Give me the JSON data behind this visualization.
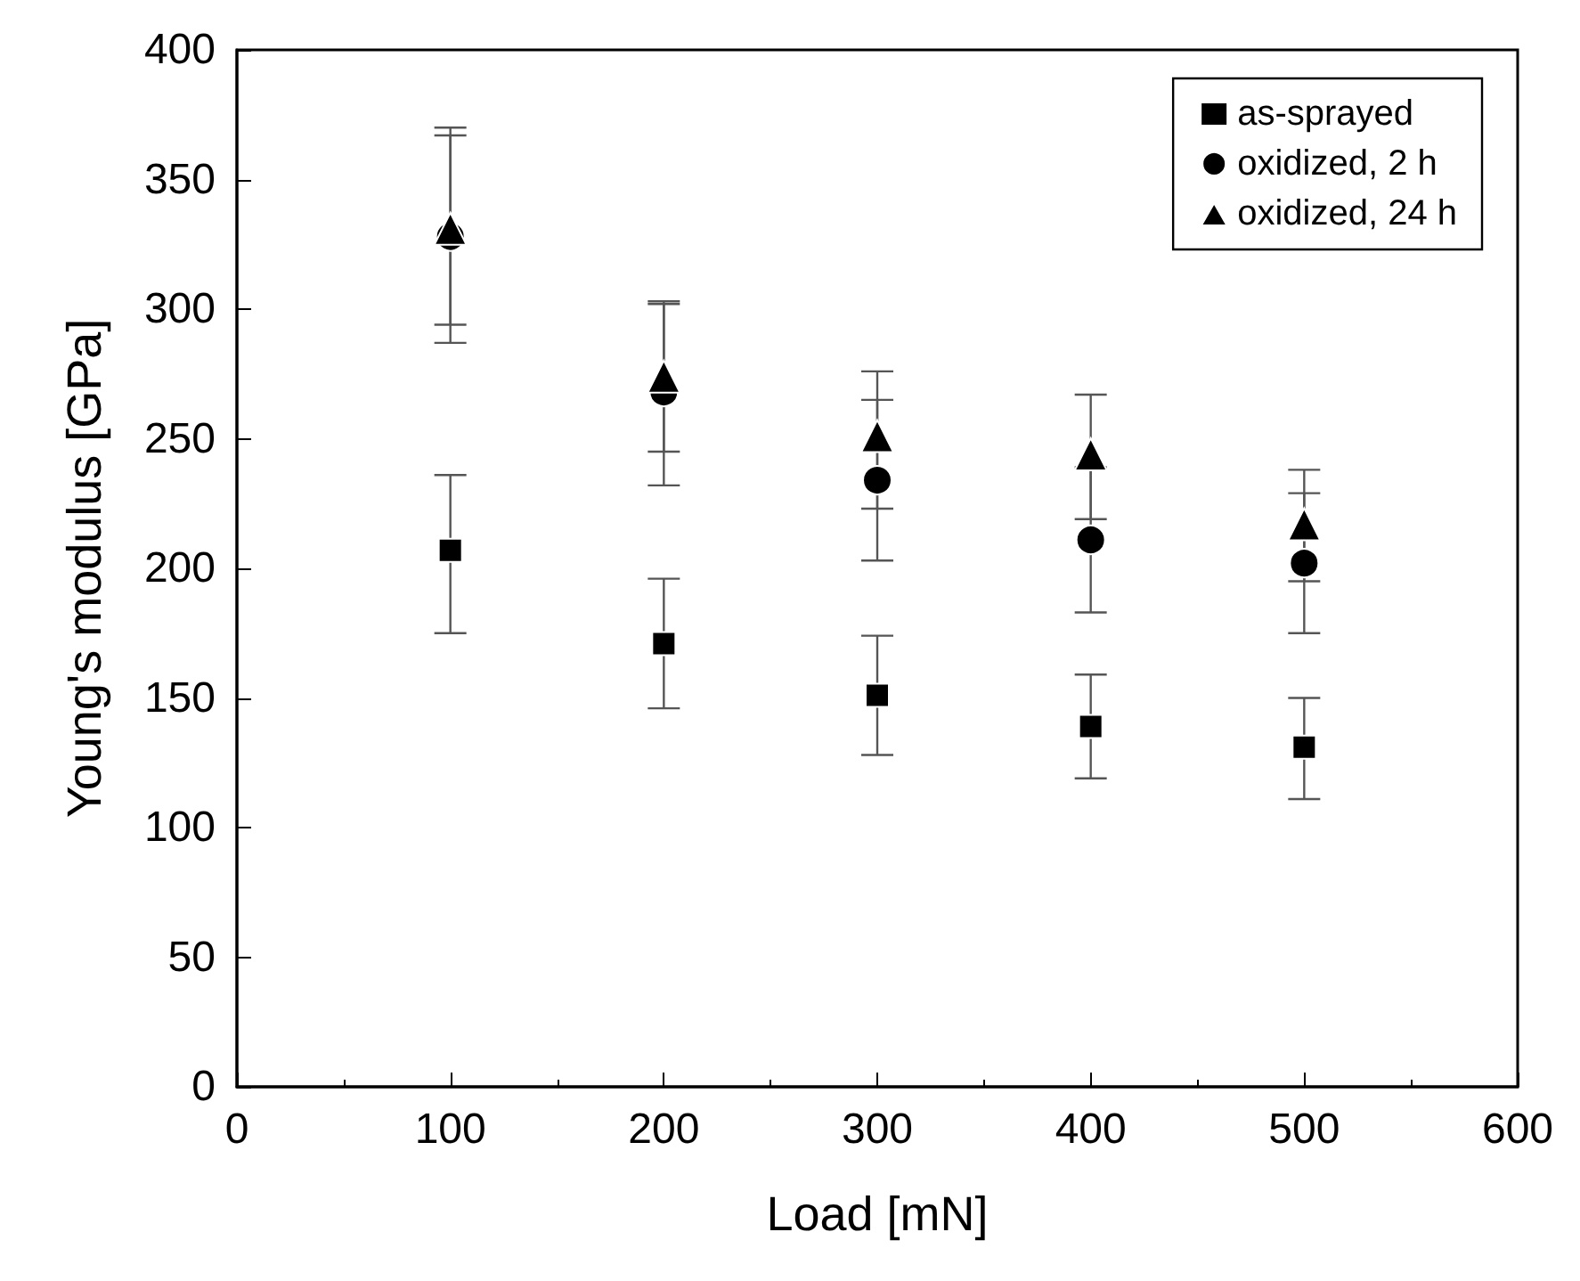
{
  "chart_data": {
    "type": "scatter",
    "xlabel": "Load [mN]",
    "ylabel": "Young's modulus [GPa]",
    "x": [
      100,
      200,
      300,
      400,
      500
    ],
    "series": [
      {
        "name": "as-sprayed",
        "color": "#000000",
        "marker": "square",
        "values": [
          207,
          171,
          151,
          139,
          131
        ],
        "errors": [
          [
            175,
            236
          ],
          [
            146,
            196
          ],
          [
            128,
            174
          ],
          [
            119,
            159
          ],
          [
            111,
            150
          ]
        ]
      },
      {
        "name": "oxidized, 2 h",
        "color": "#000000",
        "marker": "circle",
        "values": [
          328,
          268,
          234,
          211,
          202
        ],
        "errors": [
          [
            287,
            370
          ],
          [
            232,
            303
          ],
          [
            203,
            265
          ],
          [
            183,
            239
          ],
          [
            175,
            229
          ]
        ]
      },
      {
        "name": "oxidized, 24 h",
        "color": "#000000",
        "marker": "triangle",
        "values": [
          331,
          274,
          251,
          244,
          217
        ],
        "errors": [
          [
            294,
            367
          ],
          [
            245,
            302
          ],
          [
            223,
            276
          ],
          [
            219,
            267
          ],
          [
            195,
            238
          ]
        ]
      }
    ],
    "xlim": [
      0,
      600
    ],
    "xticks": [
      0,
      100,
      200,
      300,
      400,
      500,
      600
    ],
    "ylim": [
      0,
      400
    ],
    "yticks": [
      0,
      50,
      100,
      150,
      200,
      250,
      300,
      350,
      400
    ],
    "legend": "top right",
    "grid": false
  }
}
